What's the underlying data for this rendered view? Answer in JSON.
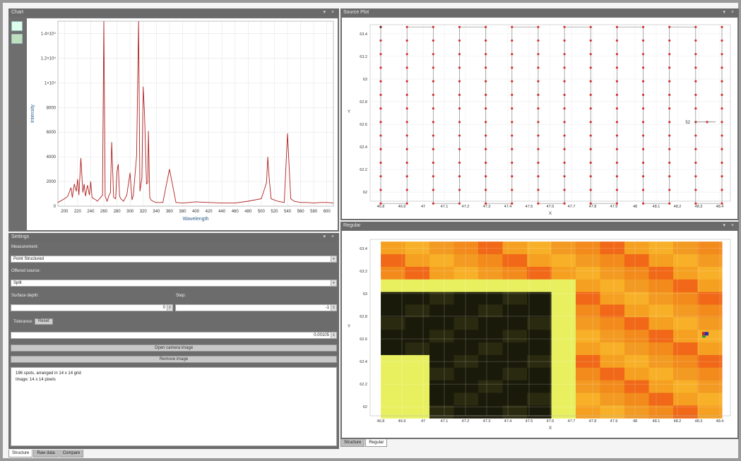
{
  "panels": {
    "chart": {
      "title": "Chart",
      "buttons": "▾ ×"
    },
    "source": {
      "title": "Source Plot",
      "buttons": "▾ ×"
    },
    "settings": {
      "title": "Settings",
      "buttons": "▾ ×"
    },
    "regular": {
      "title": "Regular",
      "buttons": "▾ ×"
    }
  },
  "toolbar": {
    "icons": [
      "line-chart-icon",
      "image-chart-icon"
    ]
  },
  "spectrum": {
    "xlabel": "Wavelength",
    "ylabel": "Intensity",
    "x_ticks": [
      "200",
      "220",
      "240",
      "260",
      "280",
      "300",
      "320",
      "340",
      "360",
      "380",
      "400",
      "420",
      "440",
      "460",
      "480",
      "500",
      "520",
      "540",
      "560",
      "580",
      "600"
    ],
    "y_ticks": [
      "0",
      "2000",
      "4000",
      "6000",
      "8000",
      "1×10⁴",
      "1.2×10⁴",
      "1.4×10⁴"
    ],
    "line_color": "#b02020"
  },
  "chart_data": [
    {
      "type": "line",
      "title": "",
      "xlabel": "Wavelength",
      "ylabel": "Intensity",
      "xlim": [
        190,
        610
      ],
      "ylim": [
        0,
        15000
      ],
      "x": [
        190,
        200,
        205,
        210,
        212,
        215,
        218,
        220,
        222,
        225,
        228,
        230,
        232,
        235,
        238,
        240,
        242,
        245,
        248,
        250,
        255,
        258,
        260,
        262,
        265,
        268,
        270,
        272,
        275,
        278,
        280,
        282,
        284,
        286,
        288,
        290,
        295,
        300,
        303,
        305,
        310,
        313,
        315,
        318,
        320,
        322,
        325,
        327,
        328,
        330,
        332,
        335,
        337,
        340,
        345,
        350,
        360,
        370,
        380,
        390,
        400,
        420,
        440,
        460,
        480,
        500,
        505,
        508,
        510,
        512,
        515,
        520,
        525,
        530,
        535,
        540,
        545,
        550,
        555,
        560,
        570,
        580,
        590,
        600,
        610
      ],
      "y": [
        300,
        600,
        800,
        1500,
        700,
        1800,
        1200,
        2200,
        900,
        3900,
        1100,
        1800,
        800,
        1700,
        900,
        2000,
        700,
        600,
        500,
        400,
        700,
        900,
        15000,
        800,
        400,
        900,
        1100,
        5200,
        700,
        600,
        2800,
        3400,
        800,
        600,
        500,
        400,
        900,
        2700,
        500,
        900,
        4100,
        15000,
        1200,
        2300,
        9700,
        7500,
        1800,
        1900,
        6100,
        700,
        500,
        400,
        350,
        300,
        300,
        300,
        3000,
        300,
        250,
        300,
        350,
        300,
        250,
        250,
        400,
        600,
        1400,
        1900,
        4000,
        2300,
        600,
        500,
        400,
        350,
        300,
        5900,
        600,
        400,
        350,
        300,
        300,
        250,
        300,
        300,
        250
      ]
    },
    {
      "type": "scatter",
      "title": "",
      "xlabel": "X",
      "ylabel": "Y",
      "xlim": [
        46.75,
        48.45
      ],
      "ylim": [
        61.92,
        63.48
      ],
      "x_ticks": [
        "46.8",
        "46.9",
        "47",
        "47.1",
        "47.2",
        "47.3",
        "47.4",
        "47.5",
        "47.6",
        "47.7",
        "47.8",
        "47.9",
        "48",
        "48.1",
        "48.2",
        "48.3",
        "48.4"
      ],
      "y_ticks": [
        "62",
        "62.2",
        "62.4",
        "62.6",
        "62.8",
        "63",
        "63.2",
        "63.4"
      ],
      "grid": "14 x 14 points, serpentine path",
      "marker_color": "#d23030",
      "annotation": "52"
    },
    {
      "type": "heatmap",
      "title": "",
      "xlabel": "X",
      "ylabel": "Y",
      "xlim": [
        46.75,
        48.45
      ],
      "ylim": [
        61.92,
        63.48
      ],
      "x_ticks": [
        "46.8",
        "46.9",
        "47",
        "47.1",
        "47.2",
        "47.3",
        "47.4",
        "47.5",
        "47.6",
        "47.7",
        "47.8",
        "47.9",
        "48",
        "48.1",
        "48.2",
        "48.3",
        "48.4"
      ],
      "y_ticks": [
        "62",
        "62.2",
        "62.4",
        "62.6",
        "62.8",
        "63",
        "63.2",
        "63.4"
      ],
      "colormap": [
        "#1a1a0a",
        "#e8f060",
        "#f5a020",
        "#f06018"
      ]
    }
  ],
  "settings": {
    "measurement_label": "Measurement:",
    "measurement_value": "Point Structured",
    "offset_label": "Offered source:",
    "offset_value": "Split",
    "surface_depth_label": "Surface depth:",
    "surface_depth_value": "0",
    "step_label": "Step:",
    "step_value": "-1",
    "tolerance_label": "Tolerance:",
    "reset_label": "Reset",
    "tolerance_value": "0.00105",
    "open_camera_label": "Open camera image",
    "remove_image_label": "Remove image",
    "info_line1": "196 spots, arranged in 14 x 14 grid",
    "info_line2": "Image: 14 x 14 pixels"
  },
  "tabs_left": [
    {
      "label": "Structure",
      "active": true
    },
    {
      "label": "Raw data",
      "active": false
    },
    {
      "label": "Compare",
      "active": false
    }
  ],
  "tabs_right": [
    {
      "label": "Structure",
      "active": false
    },
    {
      "label": "Regular",
      "active": true
    }
  ]
}
